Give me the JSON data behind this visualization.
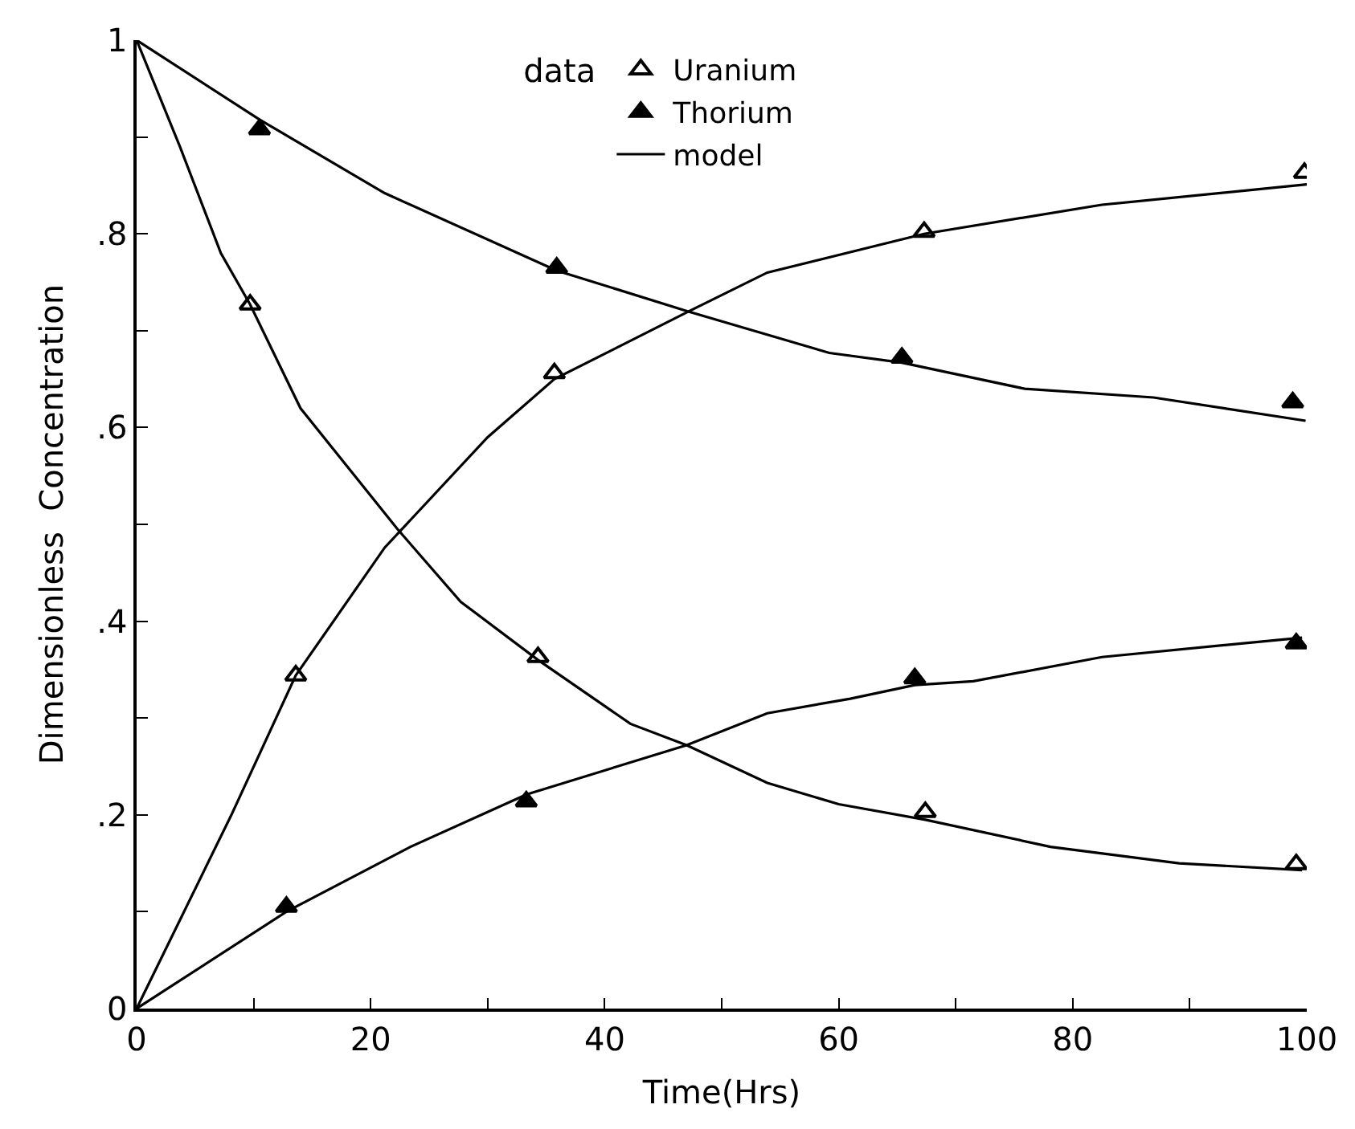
{
  "chart_data": {
    "type": "scatter",
    "xlabel": "Time(Hrs)",
    "ylabel": "Dimensionless  Concentration",
    "legend_title": "data",
    "xlim": [
      0,
      100
    ],
    "ylim": [
      0,
      1
    ],
    "xticks": [
      0,
      {
        "value": 10,
        "label": null
      },
      20,
      {
        "value": 30,
        "label": null
      },
      40,
      {
        "value": 50,
        "label": null
      },
      60,
      {
        "value": 70,
        "label": null
      },
      80,
      {
        "value": 90,
        "label": null
      },
      100
    ],
    "yticks": [
      0,
      {
        "value": 0.1,
        "label": null
      },
      {
        "value": 0.2,
        "label": ".2"
      },
      {
        "value": 0.3,
        "label": null
      },
      {
        "value": 0.4,
        "label": ".4"
      },
      {
        "value": 0.5,
        "label": null
      },
      {
        "value": 0.6,
        "label": ".6"
      },
      {
        "value": 0.7,
        "label": null
      },
      {
        "value": 0.8,
        "label": ".8"
      },
      {
        "value": 0.9,
        "label": null
      },
      1
    ],
    "legend": "top",
    "series": [
      {
        "name": "Uranium",
        "marker": "triangle-open",
        "color": "#000000",
        "x": [
          9.7,
          13.6,
          34.3,
          35.7,
          67.3,
          67.4,
          99.1,
          99.8
        ],
        "values": [
          0.727,
          0.344,
          0.363,
          0.656,
          0.802,
          0.203,
          0.149,
          0.863
        ]
      },
      {
        "name": "Thorium",
        "marker": "triangle",
        "color": "#000000",
        "x": [
          10.5,
          12.8,
          33.3,
          35.9,
          65.4,
          66.5,
          98.8,
          99.1
        ],
        "values": [
          0.908,
          0.105,
          0.214,
          0.765,
          0.672,
          0.341,
          0.626,
          0.377
        ]
      },
      {
        "name": "model",
        "type": "line",
        "marker": "none",
        "color": "#000000",
        "x": [
          0,
          3.7,
          7.2,
          9.7,
          14,
          22.3,
          27.7,
          34.3,
          42.2,
          47,
          53.9,
          60,
          67.4,
          78.1,
          89.1,
          99.6
        ],
        "values": [
          1,
          0.89,
          0.78,
          0.727,
          0.62,
          0.495,
          0.42,
          0.36,
          0.294,
          0.272,
          0.233,
          0.211,
          0.195,
          0.167,
          0.15,
          0.143
        ]
      },
      {
        "type": "line",
        "marker": "none",
        "color": "#000000",
        "x": [
          0,
          8.1,
          13.6,
          21.2,
          30,
          35.7,
          47.2,
          53.9,
          67.3,
          82.5,
          100
        ],
        "values": [
          0,
          0.2,
          0.344,
          0.476,
          0.59,
          0.65,
          0.72,
          0.76,
          0.8,
          0.83,
          0.851
        ]
      },
      {
        "type": "line",
        "marker": "none",
        "color": "#000000",
        "x": [
          0,
          10.5,
          21.2,
          35.9,
          47.1,
          59.2,
          65.4,
          75.9,
          86.9,
          99.9
        ],
        "values": [
          1,
          0.918,
          0.842,
          0.762,
          0.72,
          0.677,
          0.667,
          0.64,
          0.631,
          0.607
        ]
      },
      {
        "type": "line",
        "marker": "none",
        "color": "#000000",
        "x": [
          0,
          12.8,
          23.4,
          33.3,
          47,
          53.9,
          61,
          66.5,
          71.5,
          82.5,
          99.6
        ],
        "values": [
          0,
          0.1,
          0.167,
          0.221,
          0.272,
          0.305,
          0.32,
          0.334,
          0.338,
          0.363,
          0.383
        ]
      }
    ]
  }
}
